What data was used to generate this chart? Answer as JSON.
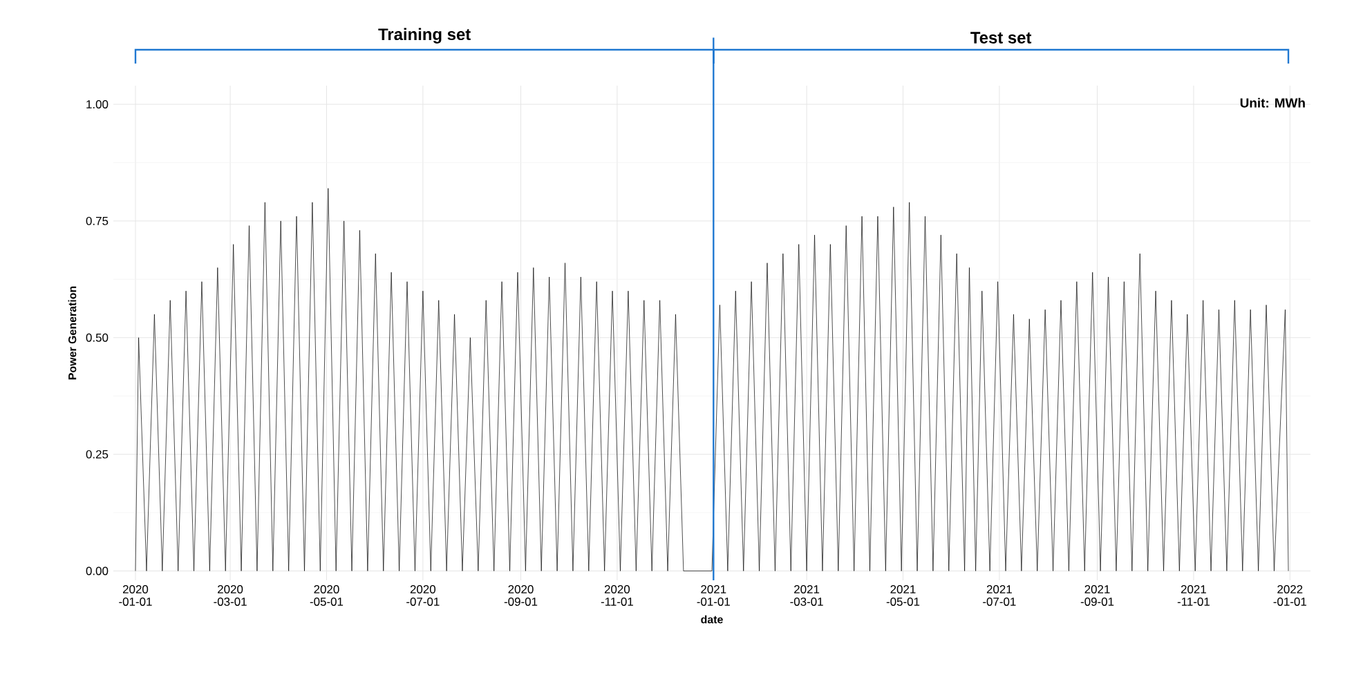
{
  "chart_data": {
    "type": "line",
    "xlabel": "date",
    "ylabel": "Power Generation",
    "annotations": [
      "Training set",
      "Test set",
      "Unit: MWh"
    ],
    "xlim": [
      "2019-12-18",
      "2022-01-14"
    ],
    "ylim": [
      -0.02,
      1.04
    ],
    "xticks": [
      {
        "value": "2020-01-01",
        "label": "2020 -01-01"
      },
      {
        "value": "2020-03-01",
        "label": "2020 -03-01"
      },
      {
        "value": "2020-05-01",
        "label": "2020 -05-01"
      },
      {
        "value": "2020-07-01",
        "label": "2020 -07-01"
      },
      {
        "value": "2020-09-01",
        "label": "2020 -09-01"
      },
      {
        "value": "2020-11-01",
        "label": "2020 -11-01"
      },
      {
        "value": "2021-01-01",
        "label": "2021 -01-01"
      },
      {
        "value": "2021-03-01",
        "label": "2021 -03-01"
      },
      {
        "value": "2021-05-01",
        "label": "2021 -05-01"
      },
      {
        "value": "2021-07-01",
        "label": "2021 -07-01"
      },
      {
        "value": "2021-09-01",
        "label": "2021 -09-01"
      },
      {
        "value": "2021-11-01",
        "label": "2021 -11-01"
      },
      {
        "value": "2022-01-01",
        "label": "2022 -01-01"
      }
    ],
    "yticks": [
      {
        "value": 0,
        "label": "0.00"
      },
      {
        "value": 0.25,
        "label": "0.25"
      },
      {
        "value": 0.5,
        "label": "0.50"
      },
      {
        "value": 0.75,
        "label": "0.75"
      },
      {
        "value": 1,
        "label": "1.00"
      }
    ],
    "grid": true,
    "ref_lines": [
      {
        "axis": "x",
        "value": "2021-01-01",
        "color": "#1f78d1"
      }
    ],
    "series": [
      {
        "color": "#000000",
        "x": [
          "2020-01-01",
          "2020-01-03",
          "2020-01-08",
          "2020-01-13",
          "2020-01-18",
          "2020-01-23",
          "2020-01-28",
          "2020-02-02",
          "2020-02-07",
          "2020-02-12",
          "2020-02-17",
          "2020-02-22",
          "2020-02-27",
          "2020-03-03",
          "2020-03-08",
          "2020-03-13",
          "2020-03-18",
          "2020-03-23",
          "2020-03-28",
          "2020-04-02",
          "2020-04-07",
          "2020-04-12",
          "2020-04-17",
          "2020-04-22",
          "2020-04-27",
          "2020-05-02",
          "2020-05-07",
          "2020-05-12",
          "2020-05-17",
          "2020-05-22",
          "2020-05-27",
          "2020-06-01",
          "2020-06-06",
          "2020-06-11",
          "2020-06-16",
          "2020-06-21",
          "2020-06-26",
          "2020-07-01",
          "2020-07-06",
          "2020-07-11",
          "2020-07-16",
          "2020-07-21",
          "2020-07-26",
          "2020-07-31",
          "2020-08-05",
          "2020-08-10",
          "2020-08-15",
          "2020-08-20",
          "2020-08-25",
          "2020-08-30",
          "2020-09-04",
          "2020-09-09",
          "2020-09-14",
          "2020-09-19",
          "2020-09-24",
          "2020-09-29",
          "2020-10-04",
          "2020-10-09",
          "2020-10-14",
          "2020-10-19",
          "2020-10-24",
          "2020-10-29",
          "2020-11-03",
          "2020-11-08",
          "2020-11-13",
          "2020-11-18",
          "2020-11-23",
          "2020-11-28",
          "2020-12-03",
          "2020-12-08",
          "2020-12-13",
          "2020-12-31",
          "2021-01-05",
          "2021-01-10",
          "2021-01-15",
          "2021-01-20",
          "2021-01-25",
          "2021-01-30",
          "2021-02-04",
          "2021-02-09",
          "2021-02-14",
          "2021-02-19",
          "2021-02-24",
          "2021-03-01",
          "2021-03-06",
          "2021-03-11",
          "2021-03-16",
          "2021-03-21",
          "2021-03-26",
          "2021-03-31",
          "2021-04-05",
          "2021-04-10",
          "2021-04-15",
          "2021-04-20",
          "2021-04-25",
          "2021-04-30",
          "2021-05-05",
          "2021-05-10",
          "2021-05-15",
          "2021-05-20",
          "2021-05-25",
          "2021-05-30",
          "2021-06-04",
          "2021-06-09",
          "2021-06-12",
          "2021-06-16",
          "2021-06-20",
          "2021-06-25",
          "2021-06-30",
          "2021-07-05",
          "2021-07-10",
          "2021-07-15",
          "2021-07-20",
          "2021-07-25",
          "2021-07-30",
          "2021-08-04",
          "2021-08-09",
          "2021-08-14",
          "2021-08-19",
          "2021-08-24",
          "2021-08-29",
          "2021-09-03",
          "2021-09-08",
          "2021-09-13",
          "2021-09-18",
          "2021-09-23",
          "2021-09-28",
          "2021-10-03",
          "2021-10-08",
          "2021-10-13",
          "2021-10-18",
          "2021-10-23",
          "2021-10-28",
          "2021-11-02",
          "2021-11-07",
          "2021-11-12",
          "2021-11-17",
          "2021-11-22",
          "2021-11-27",
          "2021-12-02",
          "2021-12-07",
          "2021-12-12",
          "2021-12-17",
          "2021-12-22",
          "2021-12-29",
          "2021-12-31"
        ],
        "values": [
          0,
          0.5,
          0,
          0.55,
          0,
          0.58,
          0,
          0.6,
          0,
          0.62,
          0,
          0.65,
          0,
          0.7,
          0,
          0.74,
          0,
          0.79,
          0,
          0.75,
          0,
          0.76,
          0,
          0.79,
          0,
          0.82,
          0,
          0.75,
          0,
          0.73,
          0,
          0.68,
          0,
          0.64,
          0,
          0.62,
          0,
          0.6,
          0,
          0.58,
          0,
          0.55,
          0,
          0.5,
          0,
          0.58,
          0,
          0.62,
          0,
          0.64,
          0,
          0.65,
          0,
          0.63,
          0,
          0.66,
          0,
          0.63,
          0,
          0.62,
          0,
          0.6,
          0,
          0.6,
          0,
          0.58,
          0,
          0.58,
          0,
          0.55,
          0,
          0,
          0.57,
          0,
          0.6,
          0,
          0.62,
          0,
          0.66,
          0,
          0.68,
          0,
          0.7,
          0,
          0.72,
          0,
          0.7,
          0,
          0.74,
          0,
          0.76,
          0,
          0.76,
          0,
          0.78,
          0,
          0.79,
          0,
          0.76,
          0,
          0.72,
          0,
          0.68,
          0,
          0.65,
          0,
          0.6,
          0,
          0.62,
          0,
          0.55,
          0,
          0.54,
          0,
          0.56,
          0,
          0.58,
          0,
          0.62,
          0,
          0.64,
          0,
          0.63,
          0,
          0.62,
          0,
          0.68,
          0,
          0.6,
          0,
          0.58,
          0,
          0.55,
          0,
          0.58,
          0,
          0.56,
          0,
          0.58,
          0,
          0.56,
          0,
          0.57,
          0,
          0.56,
          0
        ]
      }
    ]
  }
}
